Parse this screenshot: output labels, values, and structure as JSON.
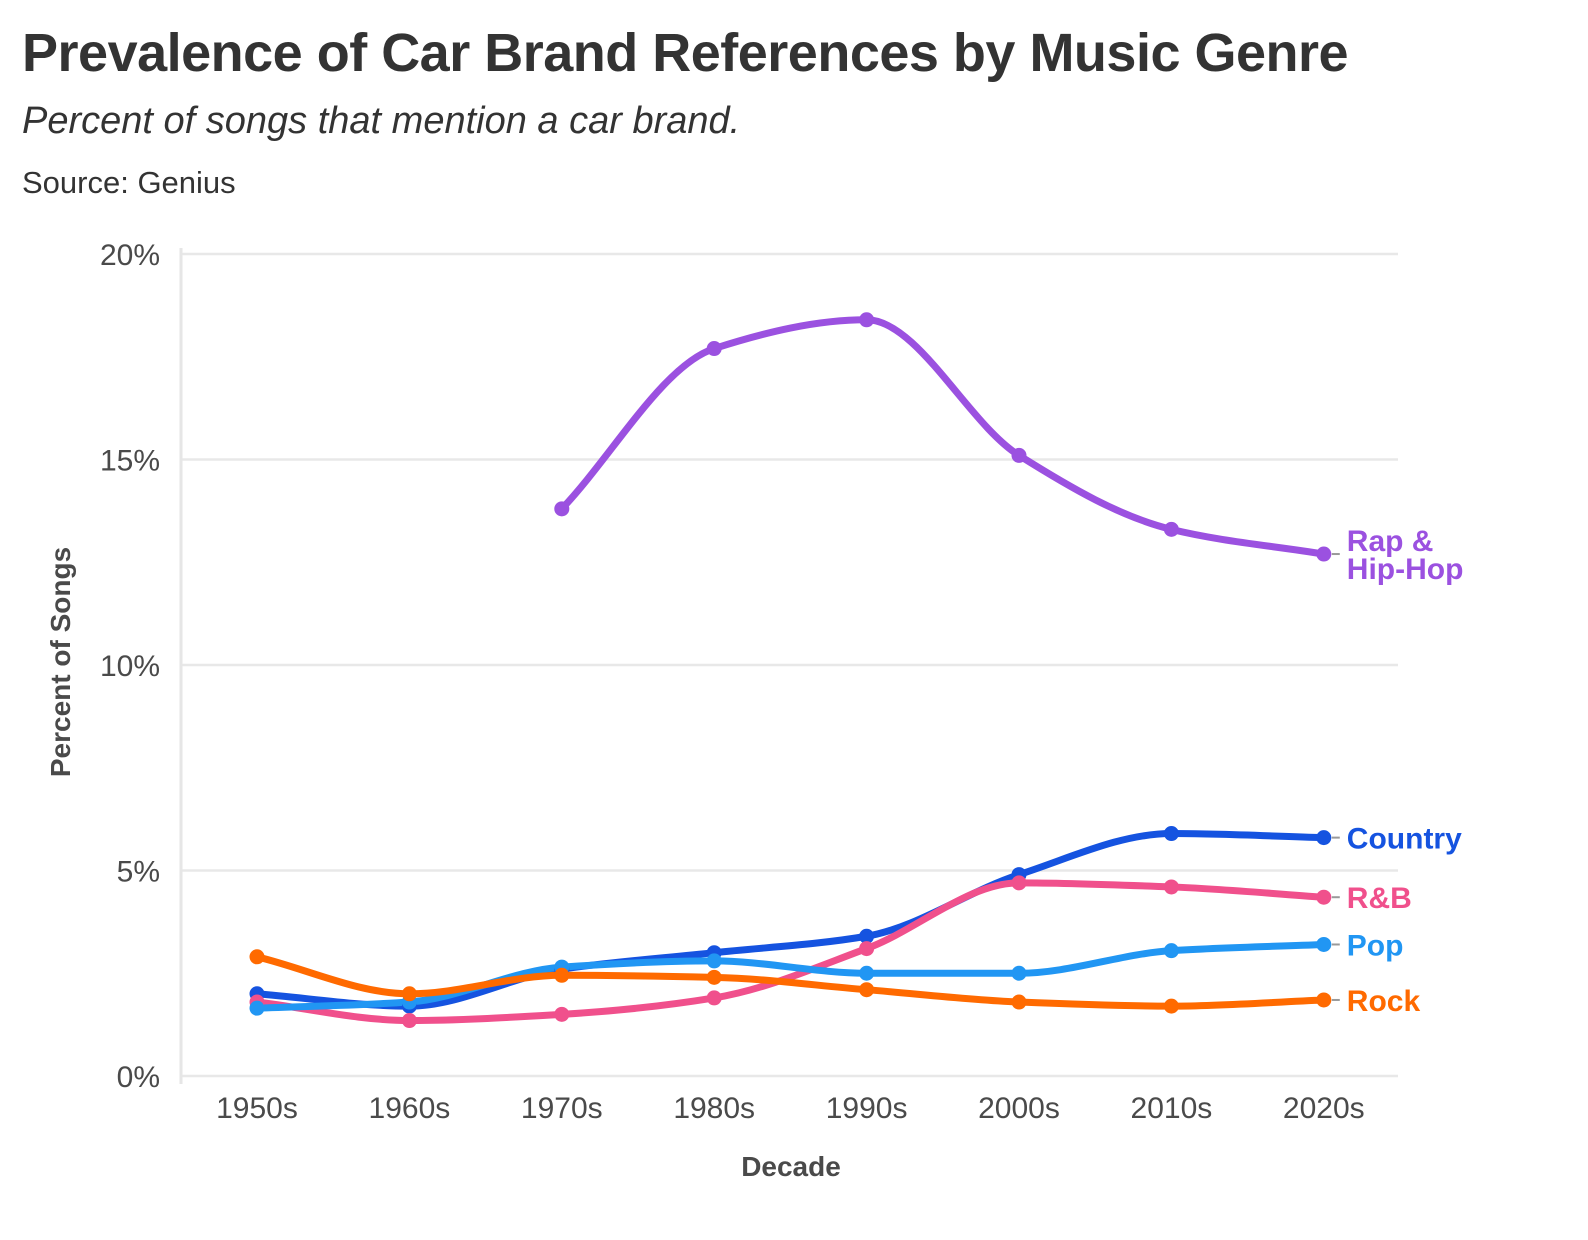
{
  "header": {
    "title": "Prevalence of Car Brand References by Music Genre",
    "subtitle": "Percent of songs that mention a car brand.",
    "source": "Source: Genius"
  },
  "chart_data": {
    "type": "line",
    "title": "Prevalence of Car Brand References by Music Genre",
    "subtitle": "Percent of songs that mention a car brand.",
    "xlabel": "Decade",
    "ylabel": "Percent of Songs",
    "categories": [
      "1950s",
      "1960s",
      "1970s",
      "1980s",
      "1990s",
      "2000s",
      "2010s",
      "2020s"
    ],
    "ylim": [
      0,
      20
    ],
    "yticks": [
      0,
      5,
      10,
      15,
      20
    ],
    "ytick_labels": [
      "0%",
      "5%",
      "10%",
      "15%",
      "20%"
    ],
    "grid": "horizontal",
    "legend": "direct labels at right end of lines",
    "series": [
      {
        "name": "Rap & Hip-Hop",
        "label_lines": [
          "Rap &",
          "Hip-Hop"
        ],
        "color": "#9b51e0",
        "values": [
          null,
          null,
          13.8,
          17.7,
          18.4,
          15.1,
          13.3,
          12.7
        ]
      },
      {
        "name": "Country",
        "label_lines": [
          "Country"
        ],
        "color": "#1553e0",
        "values": [
          2.0,
          1.7,
          2.6,
          3.0,
          3.4,
          4.9,
          5.9,
          5.8
        ]
      },
      {
        "name": "R&B",
        "label_lines": [
          "R&B"
        ],
        "color": "#f0508c",
        "values": [
          1.8,
          1.35,
          1.5,
          1.9,
          3.1,
          4.7,
          4.6,
          4.35
        ]
      },
      {
        "name": "Pop",
        "label_lines": [
          "Pop"
        ],
        "color": "#2196f3",
        "values": [
          1.65,
          1.8,
          2.65,
          2.8,
          2.5,
          2.5,
          3.05,
          3.2
        ]
      },
      {
        "name": "Rock",
        "label_lines": [
          "Rock"
        ],
        "color": "#ff6a00",
        "values": [
          2.9,
          2.0,
          2.45,
          2.4,
          2.1,
          1.8,
          1.7,
          1.85
        ]
      }
    ]
  }
}
